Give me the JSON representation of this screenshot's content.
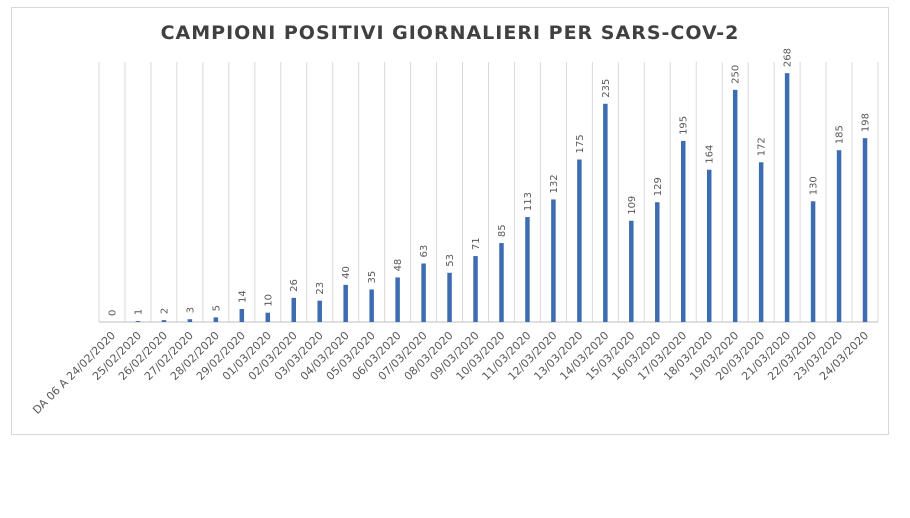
{
  "chart_data": {
    "type": "bar",
    "title": "CAMPIONI POSITIVI GIORNALIERI PER SARS-COV-2",
    "xlabel": "",
    "ylabel": "",
    "ylim": [
      0,
      280
    ],
    "grid": "vertical",
    "legend": "none",
    "bar_color": "#3d6db0",
    "categories": [
      "DA 06 A 24/02/2020",
      "25/02/2020",
      "26/02/2020",
      "27/02/2020",
      "28/02/2020",
      "29/02/2020",
      "01/03/2020",
      "02/03/2020",
      "03/03/2020",
      "04/03/2020",
      "05/03/2020",
      "06/03/2020",
      "07/03/2020",
      "08/03/2020",
      "09/03/2020",
      "10/03/2020",
      "11/03/2020",
      "12/03/2020",
      "13/03/2020",
      "14/03/2020",
      "15/03/2020",
      "16/03/2020",
      "17/03/2020",
      "18/03/2020",
      "19/03/2020",
      "20/03/2020",
      "21/03/2020",
      "22/03/2020",
      "23/03/2020",
      "24/03/2020"
    ],
    "values": [
      0,
      1,
      2,
      3,
      5,
      14,
      10,
      26,
      23,
      40,
      35,
      48,
      63,
      53,
      71,
      85,
      113,
      132,
      175,
      235,
      109,
      129,
      195,
      164,
      250,
      172,
      268,
      130,
      185,
      198
    ]
  }
}
